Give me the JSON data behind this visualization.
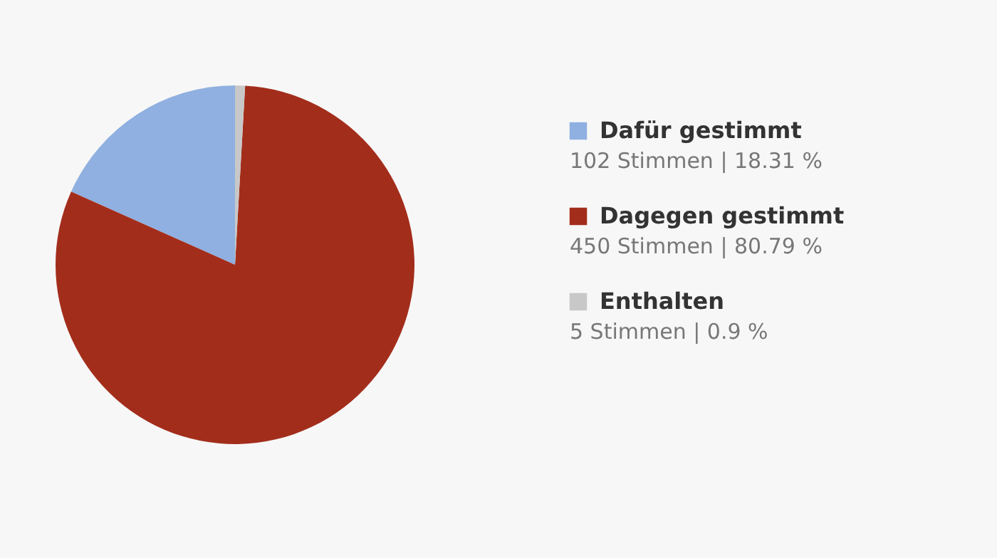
{
  "chart_data": {
    "type": "pie",
    "categories": [
      "Dafür gestimmt",
      "Dagegen gestimmt",
      "Enthalten"
    ],
    "values": [
      102,
      450,
      5
    ],
    "colors": [
      "#8fb0e0",
      "#a32d1b",
      "#c8c8c8"
    ],
    "value_labels": [
      "102 Stimmen | 18.31 %",
      "450 Stimmen | 80.79 %",
      "5 Stimmen | 0.9 %"
    ],
    "legend": "right"
  }
}
